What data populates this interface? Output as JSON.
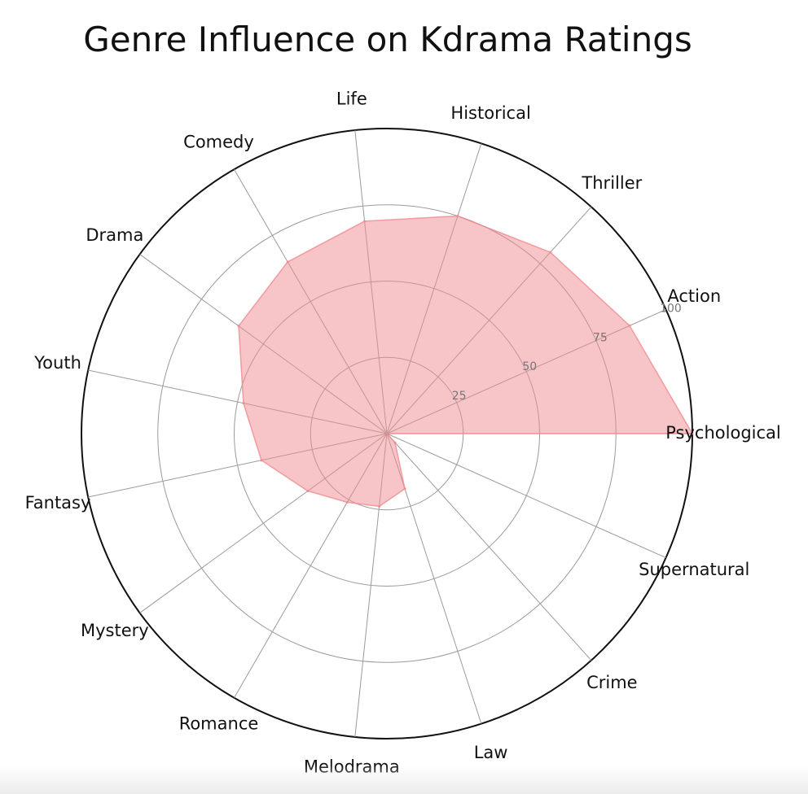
{
  "chart_data": {
    "type": "radar",
    "title": "Genre Influence on Kdrama Ratings",
    "categories": [
      "Psychological",
      "Action",
      "Thriller",
      "Historical",
      "Life",
      "Comedy",
      "Drama",
      "Youth",
      "Fantasy",
      "Mystery",
      "Romance",
      "Melodrama",
      "Law",
      "Crime",
      "Supernatural"
    ],
    "values": [
      100,
      87,
      80,
      75,
      70,
      65,
      60,
      48,
      42,
      32,
      26,
      24,
      19,
      4,
      0
    ],
    "rlim": [
      0,
      100
    ],
    "rticks": [
      25,
      50,
      75,
      100
    ],
    "rtick_labels": [
      "25",
      "50",
      "75",
      "100"
    ],
    "grid": true,
    "fill_color": "#f08a90",
    "fill_opacity": 0.5
  }
}
